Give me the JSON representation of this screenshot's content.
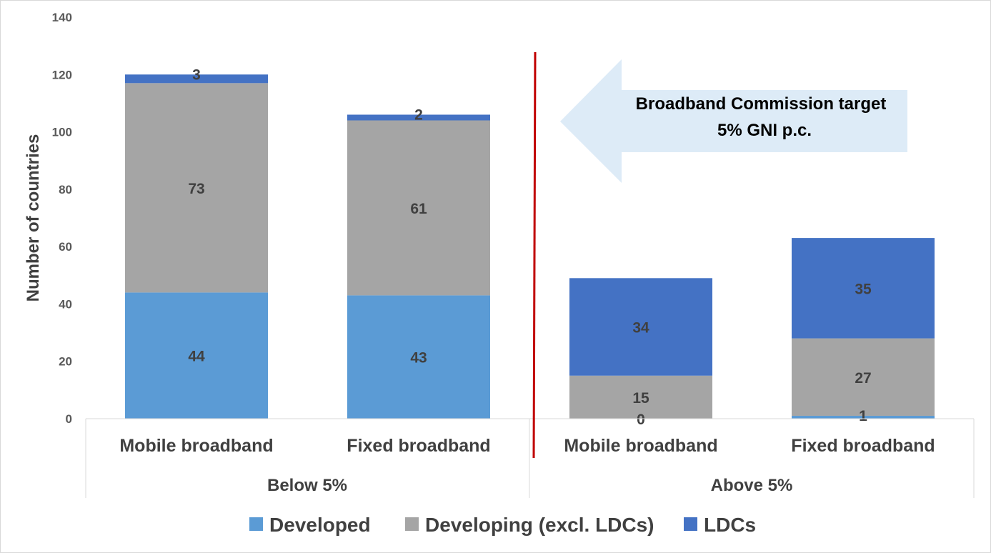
{
  "chart_data": {
    "type": "bar",
    "stacked": true,
    "ylabel": "Number of countries",
    "ylim": [
      0,
      140
    ],
    "yticks": [
      0,
      20,
      40,
      60,
      80,
      100,
      120,
      140
    ],
    "groups": [
      {
        "label": "Below 5%",
        "categories": [
          "Mobile broadband",
          "Fixed broadband"
        ]
      },
      {
        "label": "Above 5%",
        "categories": [
          "Mobile broadband",
          "Fixed broadband"
        ]
      }
    ],
    "categories": [
      "Mobile broadband",
      "Fixed broadband",
      "Mobile broadband",
      "Fixed broadband"
    ],
    "series": [
      {
        "name": "Developed",
        "color": "#5b9bd5",
        "values": [
          44,
          43,
          0,
          1
        ]
      },
      {
        "name": "Developing (excl. LDCs)",
        "color": "#a5a5a5",
        "values": [
          73,
          61,
          15,
          27
        ]
      },
      {
        "name": "LDCs",
        "color": "#4472c4",
        "values": [
          3,
          2,
          34,
          35
        ]
      }
    ],
    "annotation": {
      "line1": "Broadband Commission target",
      "line2": "5% GNI p.c.",
      "arrow_color": "#ddebf7",
      "divider_color": "#c00000"
    },
    "legend_position": "bottom"
  }
}
